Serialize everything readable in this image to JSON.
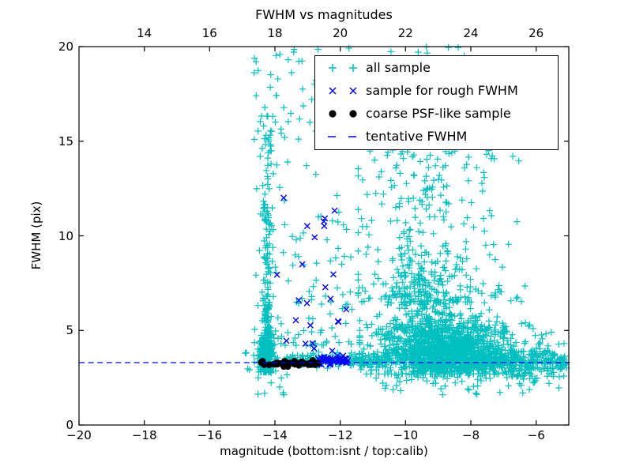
{
  "title": "FWHM vs magnitudes",
  "axes": {
    "xlabel": "magnitude (bottom:isnt / top:calib)",
    "ylabel": "FWHM (pix)",
    "bottom_ticks": [
      {
        "v": -20,
        "label": "−20"
      },
      {
        "v": -18,
        "label": "−18"
      },
      {
        "v": -16,
        "label": "−16"
      },
      {
        "v": -14,
        "label": "−14"
      },
      {
        "v": -12,
        "label": "−12"
      },
      {
        "v": -10,
        "label": "−10"
      },
      {
        "v": -8,
        "label": "−8"
      },
      {
        "v": -6,
        "label": "−6"
      }
    ],
    "top_ticks": [
      {
        "v": 14,
        "label": "14"
      },
      {
        "v": 16,
        "label": "16"
      },
      {
        "v": 18,
        "label": "18"
      },
      {
        "v": 20,
        "label": "20"
      },
      {
        "v": 22,
        "label": "22"
      },
      {
        "v": 24,
        "label": "24"
      },
      {
        "v": 26,
        "label": "26"
      }
    ],
    "y_ticks": [
      {
        "v": 0,
        "label": "0"
      },
      {
        "v": 5,
        "label": "5"
      },
      {
        "v": 10,
        "label": "10"
      },
      {
        "v": 15,
        "label": "15"
      },
      {
        "v": 20,
        "label": "20"
      }
    ]
  },
  "colors": {
    "all_sample": "#00bfbf",
    "rough_fwhm": "#0000ff",
    "psf_like": "#000000",
    "tentative_line": "#0000ff",
    "frame": "#000000"
  },
  "legend": {
    "entries": [
      {
        "marker": "plus",
        "color": "#00bfbf",
        "label": "all sample"
      },
      {
        "marker": "x",
        "color": "#0000ff",
        "label": "sample for rough FWHM"
      },
      {
        "marker": "dot",
        "color": "#000000",
        "label": "coarse PSF-like sample"
      },
      {
        "marker": "dash",
        "color": "#0000ff",
        "label": "tentative FWHM"
      }
    ]
  },
  "chart_data": {
    "type": "scatter",
    "title": "FWHM vs magnitudes",
    "xlabel": "magnitude (bottom:isnt / top:calib)",
    "ylabel": "FWHM (pix)",
    "xlim": [
      -20,
      -5
    ],
    "top_xlim": [
      12,
      27
    ],
    "ylim": [
      0,
      20
    ],
    "grid": false,
    "legend_position": "upper center-right",
    "tentative_fwhm": 3.3,
    "seed": 20240613,
    "series": [
      {
        "name": "all sample",
        "marker": "plus",
        "color": "#00bfbf",
        "size": 8.4,
        "stroke": 1.2,
        "clusters": [
          {
            "n": 240,
            "x": {
              "dist": "gauss",
              "mu": -14.27,
              "sigma": 0.1,
              "min": -14.52,
              "max": -13.95
            },
            "y": {
              "dist": "gauss",
              "mu": 3.6,
              "sigma": 0.5,
              "min": 2.8,
              "max": 5.2
            }
          },
          {
            "n": 150,
            "x": {
              "dist": "gauss",
              "mu": -14.24,
              "sigma": 0.07,
              "min": -14.42,
              "max": -14.05
            },
            "y": {
              "dist": "pow",
              "min": 4.0,
              "max": 11.5,
              "exp": 2.2
            }
          },
          {
            "n": 40,
            "x": {
              "dist": "gauss",
              "mu": -14.25,
              "sigma": 0.09,
              "min": -14.45,
              "max": -14.0
            },
            "y": {
              "dist": "uniform",
              "min": 10.5,
              "max": 17.0
            }
          },
          {
            "n": 26,
            "x": {
              "dist": "uniform",
              "min": -14.65,
              "max": -13.35
            },
            "y": {
              "dist": "pow",
              "min": 15.0,
              "max": 20.2,
              "exp": 1.2
            }
          },
          {
            "n": 120,
            "x": {
              "dist": "uniform",
              "min": -14.65,
              "max": -11.6
            },
            "y": {
              "dist": "pow",
              "min": 4.2,
              "max": 16.0,
              "exp": 2.6
            }
          },
          {
            "n": 18,
            "x": {
              "dist": "uniform",
              "min": -13.4,
              "max": -11.7
            },
            "y": {
              "dist": "uniform",
              "min": 15.5,
              "max": 20.1
            }
          },
          {
            "n": 100,
            "x": {
              "dist": "gauss",
              "mu": -12.7,
              "sigma": 0.6,
              "min": -14.0,
              "max": -11.5
            },
            "y": {
              "dist": "gauss",
              "mu": 3.45,
              "sigma": 0.2,
              "min": 2.9,
              "max": 4.1
            }
          },
          {
            "n": 60,
            "x": {
              "dist": "uniform",
              "min": -11.75,
              "max": -10.5
            },
            "y": {
              "dist": "gauss",
              "mu": 3.4,
              "sigma": 0.18,
              "min": 2.9,
              "max": 4.0
            }
          },
          {
            "n": 1200,
            "x": {
              "dist": "gauss",
              "mu": -8.75,
              "sigma": 1.05,
              "min": -11.4,
              "max": -5.5
            },
            "y": {
              "dist": "gauss",
              "mu": 4.1,
              "sigma": 0.85,
              "min": 2.7,
              "max": 7.0
            }
          },
          {
            "n": 420,
            "x": {
              "dist": "gauss",
              "mu": -8.3,
              "sigma": 1.4,
              "min": -11.4,
              "max": -5.15
            },
            "y": {
              "dist": "gauss",
              "mu": 3.4,
              "sigma": 0.25,
              "min": 2.7,
              "max": 4.3
            }
          },
          {
            "n": 200,
            "x": {
              "dist": "gauss",
              "mu": -9.55,
              "sigma": 0.5,
              "min": -11.0,
              "max": -7.8
            },
            "y": {
              "dist": "gauss",
              "mu": 6.3,
              "sigma": 1.4,
              "min": 4.0,
              "max": 12.0
            }
          },
          {
            "n": 280,
            "x": {
              "dist": "gauss",
              "mu": -9.3,
              "sigma": 1.2,
              "min": -11.45,
              "max": -6.0
            },
            "y": {
              "dist": "pow",
              "min": 6.5,
              "max": 14.5,
              "exp": 1.7
            }
          },
          {
            "n": 120,
            "x": {
              "dist": "gauss",
              "mu": -9.2,
              "sigma": 1.3,
              "min": -11.4,
              "max": -5.9
            },
            "y": {
              "dist": "pow",
              "min": 14.0,
              "max": 20.1,
              "exp": 1.4
            }
          },
          {
            "n": 85,
            "x": {
              "dist": "uniform",
              "min": -10.9,
              "max": -5.2
            },
            "y": {
              "dist": "gauss",
              "mu": 2.5,
              "sigma": 0.45,
              "min": 1.2,
              "max": 3.0
            }
          },
          {
            "n": 140,
            "x": {
              "dist": "uniform",
              "min": -6.9,
              "max": -5.05
            },
            "y": {
              "dist": "gauss",
              "mu": 3.4,
              "sigma": 0.5,
              "min": 2.2,
              "max": 5.0
            }
          },
          {
            "n": 6,
            "x": {
              "dist": "uniform",
              "min": -15.0,
              "max": -14.55
            },
            "y": {
              "dist": "uniform",
              "min": 2.6,
              "max": 4.0
            }
          },
          {
            "n": 10,
            "x": {
              "dist": "uniform",
              "min": -14.55,
              "max": -13.6
            },
            "y": {
              "dist": "uniform",
              "min": 1.6,
              "max": 2.8
            }
          }
        ]
      },
      {
        "name": "sample for rough FWHM",
        "marker": "x",
        "color": "#0000ff",
        "size": 7.0,
        "stroke": 1.4,
        "clusters": [
          {
            "n": 40,
            "x": {
              "dist": "uniform",
              "min": -12.65,
              "max": -11.75
            },
            "y": {
              "dist": "gauss",
              "mu": 3.4,
              "sigma": 0.1,
              "min": 3.1,
              "max": 3.8
            }
          },
          {
            "n": 32,
            "x": {
              "dist": "gauss",
              "mu": -12.85,
              "sigma": 0.55,
              "min": -14.45,
              "max": -11.7
            },
            "y": {
              "dist": "pow",
              "min": 3.2,
              "max": 12.2,
              "exp": 1.6
            }
          }
        ]
      },
      {
        "name": "coarse PSF-like sample",
        "marker": "dot",
        "color": "#000000",
        "size": 8.6,
        "clusters": [
          {
            "n": 30,
            "x": {
              "dist": "uniform",
              "min": -14.42,
              "max": -12.6
            },
            "y": {
              "dist": "gauss",
              "mu": 3.25,
              "sigma": 0.06,
              "min": 3.1,
              "max": 3.45
            }
          },
          {
            "n": 4,
            "x": {
              "dist": "uniform",
              "min": -12.9,
              "max": -12.55
            },
            "y": {
              "dist": "gauss",
              "mu": 3.28,
              "sigma": 0.07,
              "min": 3.1,
              "max": 3.45
            }
          }
        ]
      },
      {
        "name": "tentative FWHM",
        "marker": "dash",
        "type": "hline",
        "y": 3.3,
        "color": "#0000ff"
      }
    ]
  }
}
